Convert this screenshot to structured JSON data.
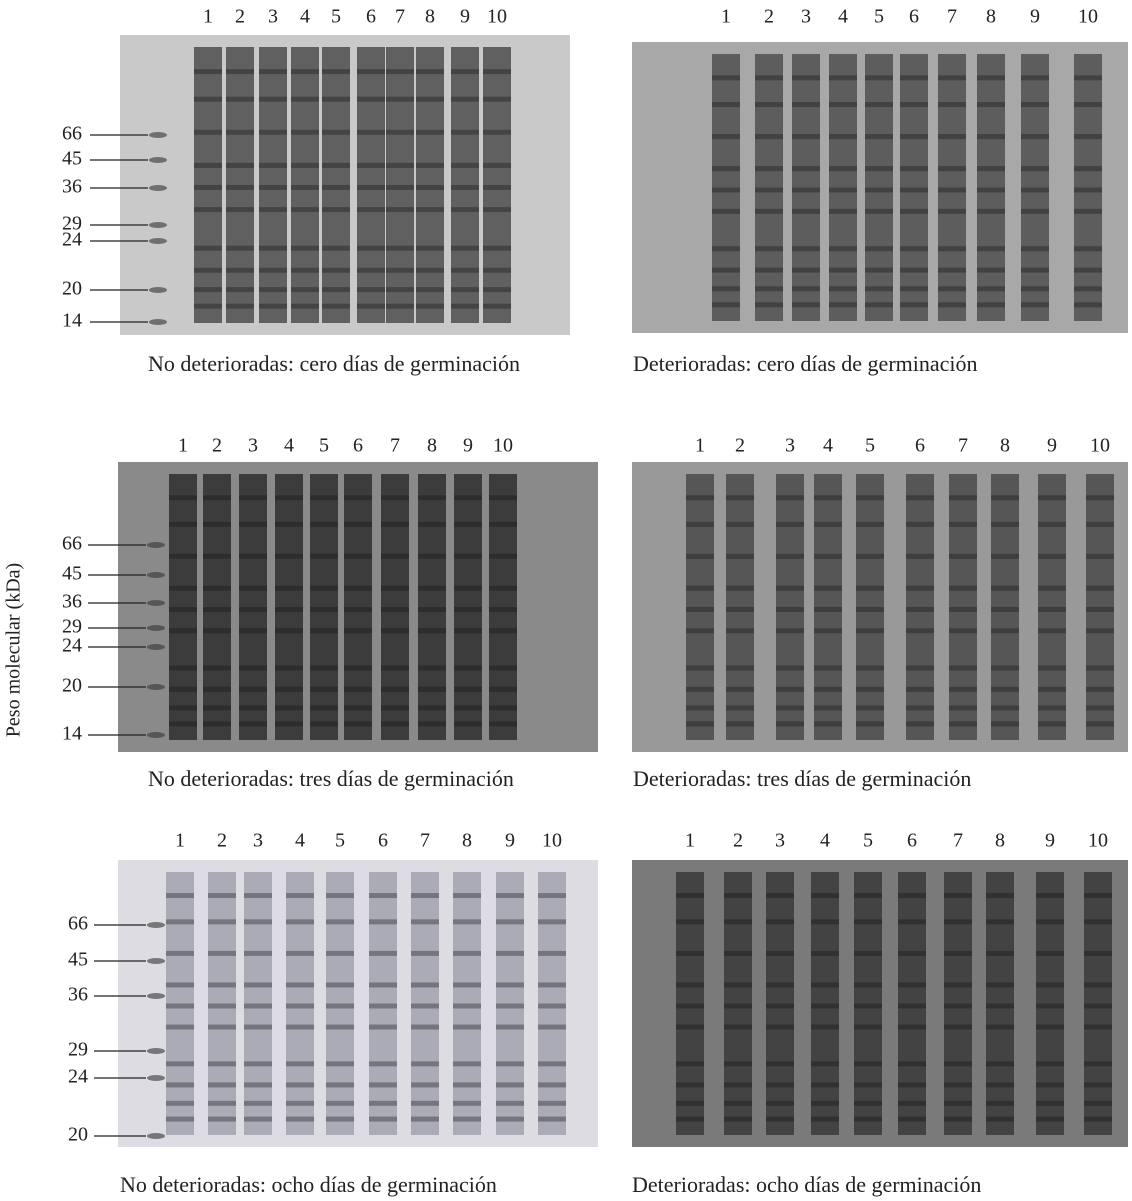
{
  "y_axis_label": "Peso molecular (kDa)",
  "panels": [
    {
      "caption": "No deterioradas: cero días de germinación",
      "lanes": [
        "1",
        "2",
        "3",
        "4",
        "5",
        "6",
        "7",
        "8",
        "9",
        "10"
      ],
      "markers": [
        "66",
        "45",
        "36",
        "29",
        "24",
        "20",
        "14"
      ]
    },
    {
      "caption": "Deterioradas: cero días de germinación",
      "lanes": [
        "1",
        "2",
        "3",
        "4",
        "5",
        "6",
        "7",
        "8",
        "9",
        "10"
      ],
      "markers": []
    },
    {
      "caption": "No deterioradas: tres días de germinación",
      "lanes": [
        "1",
        "2",
        "3",
        "4",
        "5",
        "6",
        "7",
        "8",
        "9",
        "10"
      ],
      "markers": [
        "66",
        "45",
        "36",
        "29",
        "24",
        "20",
        "14"
      ]
    },
    {
      "caption": "Deterioradas: tres días de germinación",
      "lanes": [
        "1",
        "2",
        "3",
        "4",
        "5",
        "6",
        "7",
        "8",
        "9",
        "10"
      ],
      "markers": []
    },
    {
      "caption": "No deterioradas: ocho días de germinación",
      "lanes": [
        "1",
        "2",
        "3",
        "4",
        "5",
        "6",
        "7",
        "8",
        "9",
        "10"
      ],
      "markers": [
        "66",
        "45",
        "36",
        "29",
        "24",
        "20"
      ]
    },
    {
      "caption": "Deterioradas: ocho días de germinación",
      "lanes": [
        "1",
        "2",
        "3",
        "4",
        "5",
        "6",
        "7",
        "8",
        "9",
        "10"
      ],
      "markers": []
    }
  ]
}
